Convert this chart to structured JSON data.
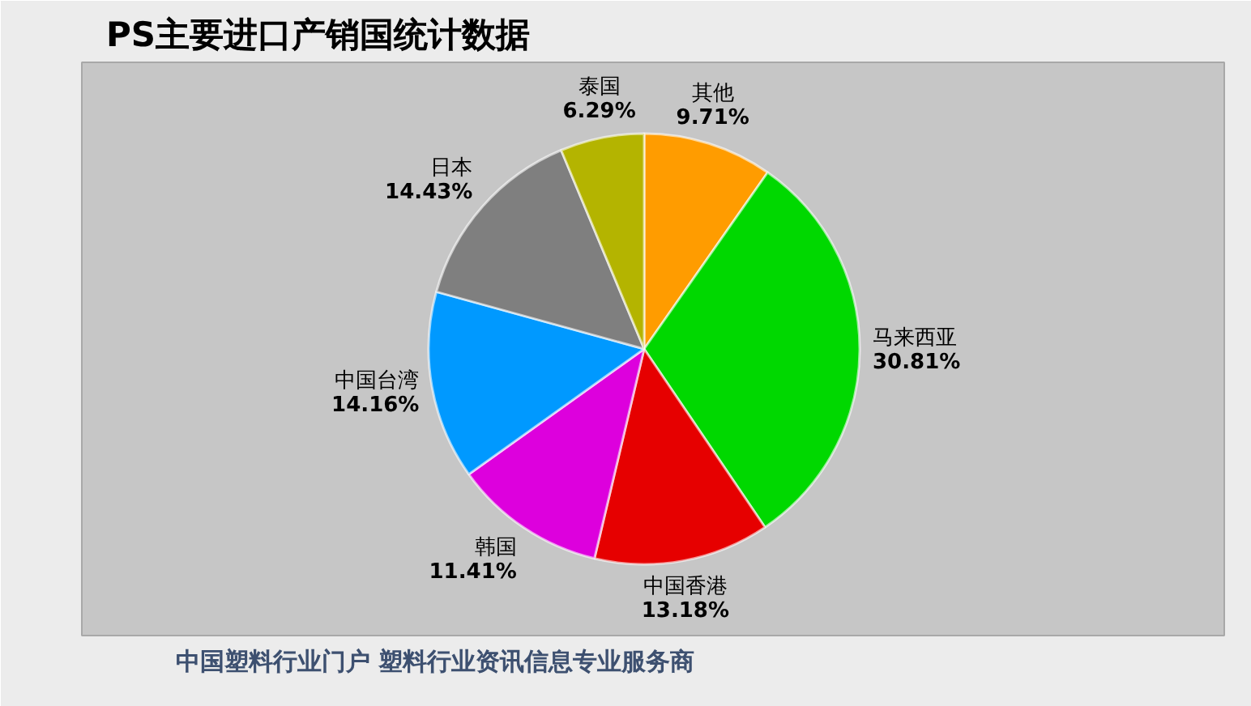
{
  "chart_data": {
    "type": "pie",
    "title": "PS主要进口产销国统计数据",
    "categories": [
      "其他",
      "马来西亚",
      "中国香港",
      "韩国",
      "中国台湾",
      "日本",
      "泰国"
    ],
    "values": [
      9.71,
      30.81,
      13.18,
      11.41,
      14.16,
      14.43,
      6.29
    ],
    "colors": [
      "#ff9c00",
      "#00d800",
      "#e60000",
      "#dd00dd",
      "#0099ff",
      "#7f7f7f",
      "#b4b400"
    ],
    "value_labels": [
      "9.71%",
      "30.81%",
      "13.18%",
      "11.41%",
      "14.16%",
      "14.43%",
      "6.29%"
    ],
    "annotations": [
      "中国塑料行业门户 塑料行业资讯信息专业服务商"
    ]
  }
}
